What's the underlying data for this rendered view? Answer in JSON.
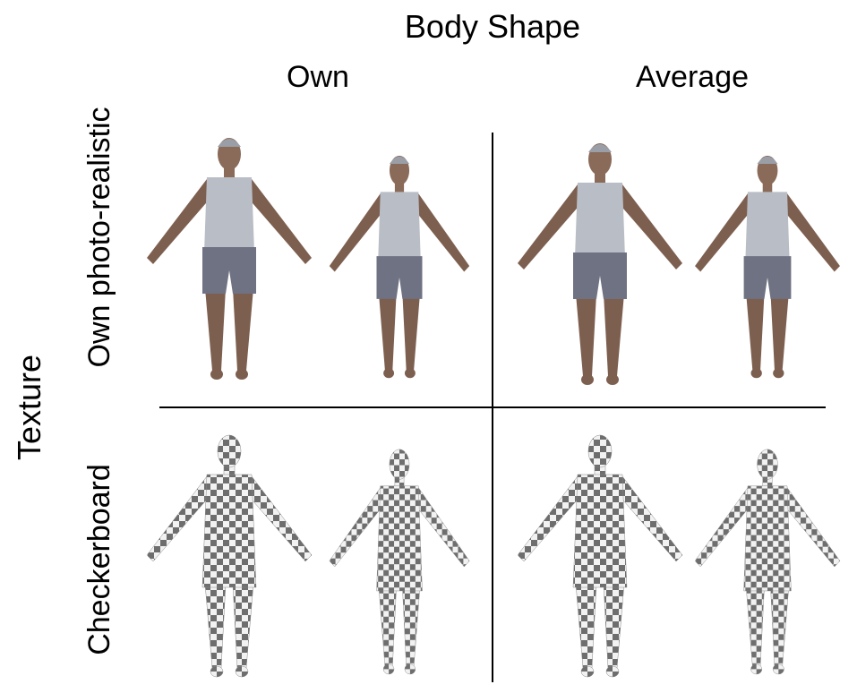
{
  "header": {
    "title": "Body Shape"
  },
  "columns": [
    "Own",
    "Average"
  ],
  "rows_title": "Texture",
  "rows": [
    "Own photo-realistic",
    "Checkerboard"
  ]
}
